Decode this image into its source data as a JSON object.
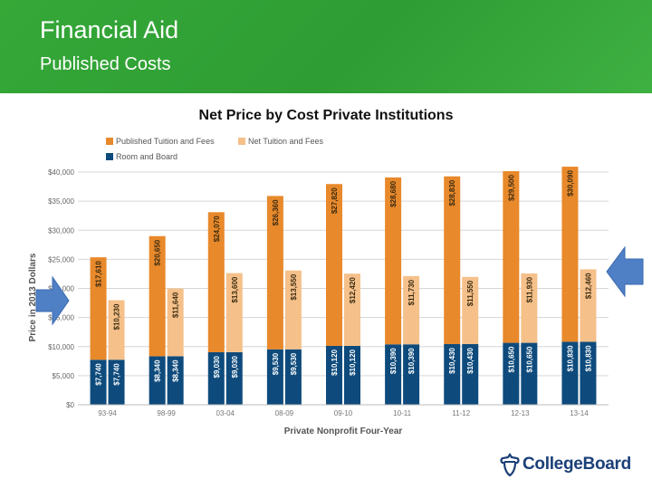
{
  "header": {
    "title": "Financial Aid",
    "subtitle": "Published Costs"
  },
  "logo": {
    "text": "CollegeBoard",
    "icon": "acorn-icon"
  },
  "colors": {
    "header_green": "#2e9d34",
    "published_tuition": "#e8892b",
    "net_tuition": "#f5c08a",
    "room_board": "#0e4b7c",
    "arrow": "#4f7fc4"
  },
  "chart_data": {
    "type": "bar",
    "title": "Net Price by Cost Private Institutions",
    "xlabel": "Private Nonprofit Four-Year",
    "ylabel": "Price in 2013 Dollars",
    "ylim": [
      0,
      40000
    ],
    "yticks": [
      "$0",
      "$5,000",
      "$10,000",
      "$15,000",
      "$20,000",
      "$25,000",
      "$30,000",
      "$35,000",
      "$40,000"
    ],
    "grid": true,
    "legend_position": "top-left",
    "stacked": true,
    "categories": [
      "93-94",
      "98-99",
      "03-04",
      "08-09",
      "09-10",
      "10-11",
      "11-12",
      "12-13",
      "13-14"
    ],
    "legend": [
      {
        "name": "Published Tuition and Fees",
        "color": "#e8892b"
      },
      {
        "name": "Net Tuition and Fees",
        "color": "#f5c08a"
      },
      {
        "name": "Room and Board",
        "color": "#0e4b7c"
      }
    ],
    "groups": [
      {
        "category": "93-94",
        "published": {
          "room_board": 7740,
          "tuition": 17610,
          "room_label": "$7,740",
          "tuition_label": "$17,610"
        },
        "net": {
          "room_board": 7740,
          "tuition": 10230,
          "room_label": "$7,740",
          "tuition_label": "$10,230"
        }
      },
      {
        "category": "98-99",
        "published": {
          "room_board": 8340,
          "tuition": 20650,
          "room_label": "$8,340",
          "tuition_label": "$20,650"
        },
        "net": {
          "room_board": 8340,
          "tuition": 11640,
          "room_label": "$8,340",
          "tuition_label": "$11,640"
        }
      },
      {
        "category": "03-04",
        "published": {
          "room_board": 9030,
          "tuition": 24070,
          "room_label": "$9,030",
          "tuition_label": "$24,070"
        },
        "net": {
          "room_board": 9030,
          "tuition": 13600,
          "room_label": "$9,030",
          "tuition_label": "$13,600"
        }
      },
      {
        "category": "08-09",
        "published": {
          "room_board": 9530,
          "tuition": 26360,
          "room_label": "$9,530",
          "tuition_label": "$26,360"
        },
        "net": {
          "room_board": 9530,
          "tuition": 13550,
          "room_label": "$9,530",
          "tuition_label": "$13,550"
        }
      },
      {
        "category": "09-10",
        "published": {
          "room_board": 10120,
          "tuition": 27820,
          "room_label": "$10,120",
          "tuition_label": "$27,820"
        },
        "net": {
          "room_board": 10120,
          "tuition": 12420,
          "room_label": "$10,120",
          "tuition_label": "$12,420"
        }
      },
      {
        "category": "10-11",
        "published": {
          "room_board": 10390,
          "tuition": 28680,
          "room_label": "$10,390",
          "tuition_label": "$28,680"
        },
        "net": {
          "room_board": 10390,
          "tuition": 11730,
          "room_label": "$10,390",
          "tuition_label": "$11,730"
        }
      },
      {
        "category": "11-12",
        "published": {
          "room_board": 10430,
          "tuition": 28830,
          "room_label": "$10,430",
          "tuition_label": "$28,830"
        },
        "net": {
          "room_board": 10430,
          "tuition": 11550,
          "room_label": "$10,430",
          "tuition_label": "$11,550"
        }
      },
      {
        "category": "12-13",
        "published": {
          "room_board": 10650,
          "tuition": 29500,
          "room_label": "$10,650",
          "tuition_label": "$29,500"
        },
        "net": {
          "room_board": 10650,
          "tuition": 11930,
          "room_label": "$10,650",
          "tuition_label": "$11,930"
        }
      },
      {
        "category": "13-14",
        "published": {
          "room_board": 10830,
          "tuition": 30090,
          "room_label": "$10,830",
          "tuition_label": "$30,090"
        },
        "net": {
          "room_board": 10830,
          "tuition": 12460,
          "room_label": "$10,830",
          "tuition_label": "$12,460"
        }
      }
    ],
    "annotations": [
      "left-arrow",
      "right-arrow"
    ]
  }
}
